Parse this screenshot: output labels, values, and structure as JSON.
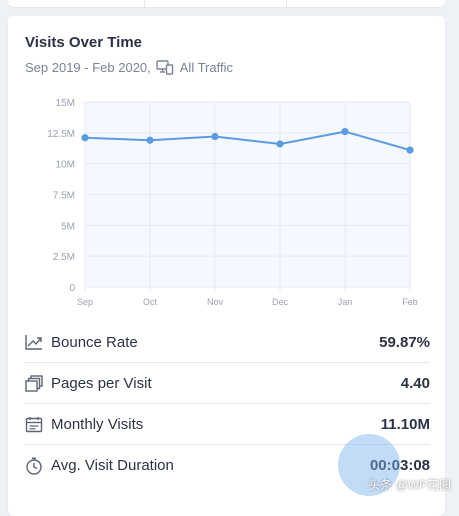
{
  "card": {
    "title": "Visits Over Time",
    "subtitle": "Sep 2019 - Feb 2020,",
    "traffic_filter": "All Traffic",
    "device_icon": "desktop-mobile-icon"
  },
  "chart_data": {
    "type": "line",
    "categories": [
      "Sep",
      "Oct",
      "Nov",
      "Dec",
      "Jan",
      "Feb"
    ],
    "series": [
      {
        "values": [
          12.1,
          11.9,
          12.2,
          11.6,
          12.6,
          11.1
        ]
      }
    ],
    "y_ticks": [
      "0",
      "2.5M",
      "5M",
      "7.5M",
      "10M",
      "12.5M",
      "15M"
    ],
    "ylim": [
      0,
      15
    ],
    "unit": "M",
    "grid": true,
    "line_color": "#5b9be0",
    "fill_color": "#f5f8ff"
  },
  "metrics": [
    {
      "label": "Bounce Rate",
      "value": "59.87%",
      "icon": "trend-chart-icon"
    },
    {
      "label": "Pages per Visit",
      "value": "4.40",
      "icon": "stacked-pages-icon"
    },
    {
      "label": "Monthly Visits",
      "value": "11.10M",
      "icon": "calendar-icon"
    },
    {
      "label": "Avg. Visit Duration",
      "value": "00:03:08",
      "icon": "stopwatch-icon"
    }
  ],
  "watermark": "头条 @WP花园",
  "colors": {
    "accent": "#5b9be0",
    "text": "#2b3246",
    "muted": "#7b8294"
  }
}
